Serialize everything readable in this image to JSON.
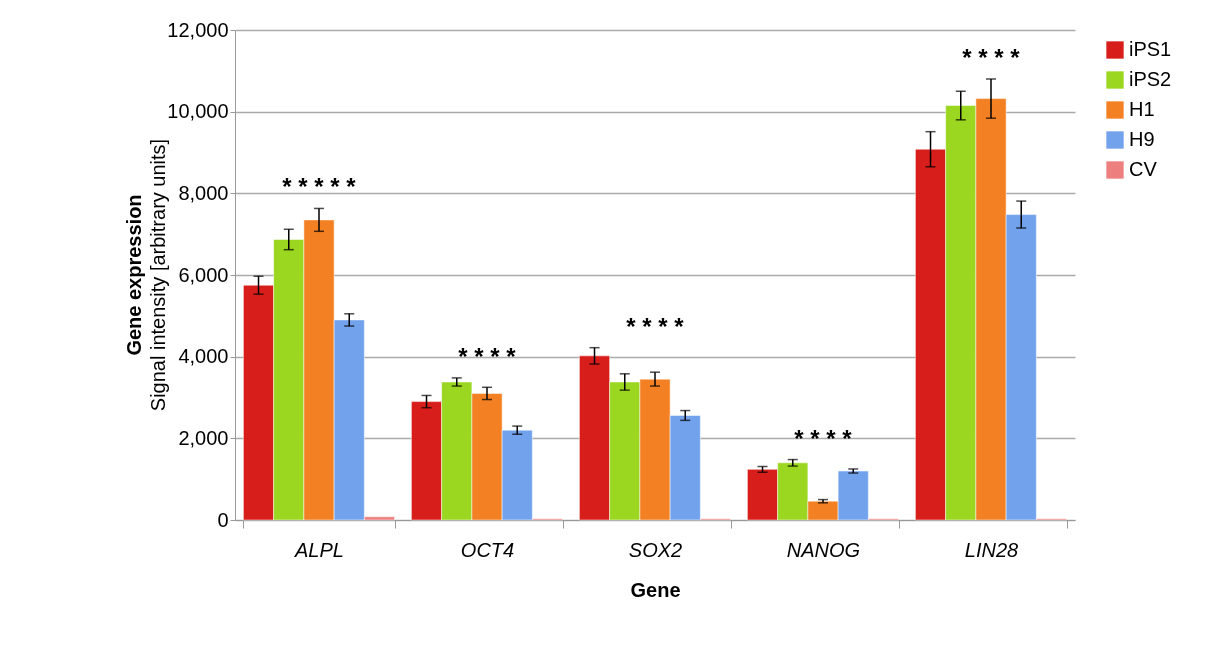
{
  "chart_data": {
    "type": "bar",
    "ylabel": "Gene expression\nSignal intensity [arbitrary units]",
    "xlabel": "Gene",
    "categories": [
      "ALPL",
      "OCT4",
      "SOX2",
      "NANOG",
      "LIN28"
    ],
    "series": [
      {
        "name": "iPS1",
        "color": "#d81e1a",
        "values": [
          5750,
          2900,
          4020,
          1240,
          9080
        ],
        "errors": [
          220,
          150,
          200,
          70,
          430
        ]
      },
      {
        "name": "iPS2",
        "color": "#9bd620",
        "values": [
          6870,
          3380,
          3380,
          1400,
          10150
        ],
        "errors": [
          250,
          100,
          200,
          80,
          350
        ]
      },
      {
        "name": "H1",
        "color": "#f38022",
        "values": [
          7350,
          3100,
          3450,
          460,
          10320
        ],
        "errors": [
          280,
          150,
          170,
          40,
          480
        ]
      },
      {
        "name": "H9",
        "color": "#73a2ec",
        "values": [
          4900,
          2200,
          2560,
          1200,
          7480
        ],
        "errors": [
          150,
          100,
          120,
          50,
          330
        ]
      },
      {
        "name": "CV",
        "color": "#ee7f7f",
        "values": [
          80,
          30,
          30,
          30,
          30
        ]
      }
    ],
    "ylim": [
      0,
      12000
    ],
    "yticks": [
      {
        "value": 0,
        "label": "0"
      },
      {
        "value": 2000,
        "label": "2,000"
      },
      {
        "value": 4000,
        "label": "4,000"
      },
      {
        "value": 6000,
        "label": "6,000"
      },
      {
        "value": 8000,
        "label": "8,000"
      },
      {
        "value": 10000,
        "label": "10,000"
      },
      {
        "value": 12000,
        "label": "12,000"
      }
    ],
    "annotations": [
      "*   *   *   *   *",
      "*   *   *   *",
      "*   *   *   *",
      "*   *   *   *",
      "*   *   *   *"
    ],
    "grid": "y",
    "legend": "right"
  }
}
